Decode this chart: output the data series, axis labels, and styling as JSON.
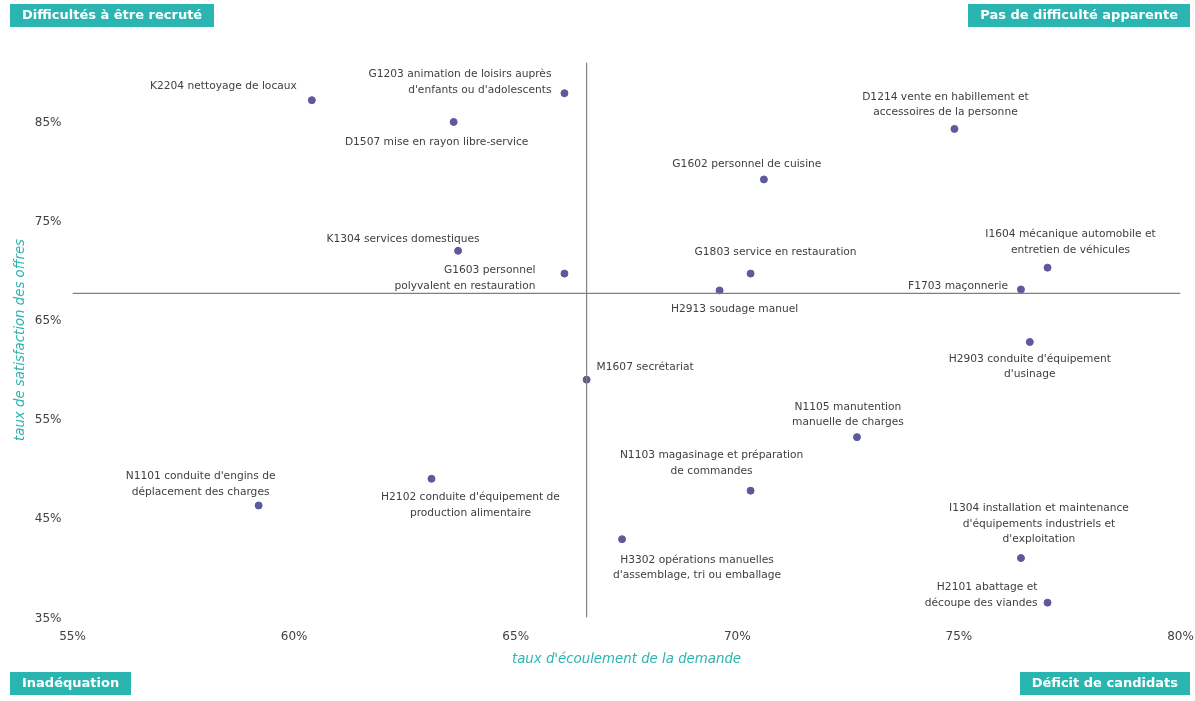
{
  "chart_data": {
    "type": "scatter",
    "xlabel": "taux d'écoulement de la demande",
    "ylabel": "taux de satisfaction des offres",
    "x": [
      60.4,
      66.1,
      63.6,
      74.9,
      70.6,
      63.7,
      66.1,
      70.3,
      77.0,
      76.4,
      69.6,
      76.6,
      66.6,
      72.7,
      63.1,
      59.2,
      70.3,
      67.4,
      76.4,
      77.0
    ],
    "series": [
      {
        "color": "#5c5a9a",
        "values": [
          87.2,
          87.9,
          85.0,
          84.3,
          79.2,
          72.0,
          69.7,
          69.7,
          70.3,
          68.1,
          68.0,
          62.8,
          59.0,
          53.2,
          49.0,
          46.3,
          47.8,
          42.9,
          41.0,
          36.5
        ]
      }
    ],
    "marker": "circle",
    "grid": false,
    "xlim": [
      55,
      80
    ],
    "ylim": [
      35,
      91
    ],
    "xticks": [
      {
        "value": 55,
        "label": "55%"
      },
      {
        "value": 60,
        "label": "60%"
      },
      {
        "value": 65,
        "label": "65%"
      },
      {
        "value": 70,
        "label": "70%"
      },
      {
        "value": 75,
        "label": "75%"
      },
      {
        "value": 80,
        "label": "80%"
      }
    ],
    "yticks": [
      {
        "value": 35,
        "label": "35%"
      },
      {
        "value": 45,
        "label": "45%"
      },
      {
        "value": 55,
        "label": "55%"
      },
      {
        "value": 65,
        "label": "65%"
      },
      {
        "value": 75,
        "label": "75%"
      },
      {
        "value": 85,
        "label": "85%"
      }
    ],
    "ref_lines": [
      {
        "axis": "x",
        "value": 66.6,
        "color": "#808080"
      },
      {
        "axis": "y",
        "value": 67.7,
        "color": "#808080"
      }
    ],
    "annotations": [
      "Difficultés à être recruté",
      "Pas de difficulté apparente",
      "Inadéquation",
      "Déficit de candidats",
      {
        "text": "K2204 nettoyage de locaux",
        "x": 60.4,
        "y": 87.2
      },
      {
        "text": "G1203 animation de loisirs auprès\nd'enfants ou d'adolescents",
        "x": 66.1,
        "y": 87.9
      },
      {
        "text": "D1507 mise en rayon libre-service",
        "x": 63.6,
        "y": 85.0
      },
      {
        "text": "D1214 vente en habillement et\naccessoires de la personne",
        "x": 74.9,
        "y": 84.3
      },
      {
        "text": "G1602 personnel de cuisine",
        "x": 70.6,
        "y": 79.2
      },
      {
        "text": "K1304 services domestiques",
        "x": 63.7,
        "y": 72.0
      },
      {
        "text": "G1603 personnel\npolyvalent en restauration",
        "x": 66.1,
        "y": 69.7
      },
      {
        "text": "G1803 service en restauration",
        "x": 70.3,
        "y": 69.7
      },
      {
        "text": "I1604 mécanique automobile et\nentretien de véhicules",
        "x": 77.0,
        "y": 70.3
      },
      {
        "text": "F1703 maçonnerie",
        "x": 76.4,
        "y": 68.1
      },
      {
        "text": "H2913 soudage manuel",
        "x": 69.6,
        "y": 68.0
      },
      {
        "text": "H2903 conduite d'équipement\nd'usinage",
        "x": 76.6,
        "y": 62.8
      },
      {
        "text": "M1607 secrétariat",
        "x": 66.6,
        "y": 59.0
      },
      {
        "text": "N1105 manutention\nmanuelle de charges",
        "x": 72.7,
        "y": 53.2
      },
      {
        "text": "H2102 conduite d'équipement de\nproduction alimentaire",
        "x": 63.1,
        "y": 49.0
      },
      {
        "text": "N1101 conduite d'engins de\ndéplacement des charges",
        "x": 59.2,
        "y": 46.3
      },
      {
        "text": "N1103 magasinage et préparation\nde commandes",
        "x": 70.3,
        "y": 47.8
      },
      {
        "text": "H3302 opérations manuelles\nd'assemblage, tri ou emballage",
        "x": 67.4,
        "y": 42.9
      },
      {
        "text": "I1304 installation et maintenance\nd'équipements industriels et\nd'exploitation",
        "x": 76.4,
        "y": 41.0
      },
      {
        "text": "H2101 abattage et\ndécoupe des viandes",
        "x": 77.0,
        "y": 36.5
      }
    ]
  }
}
